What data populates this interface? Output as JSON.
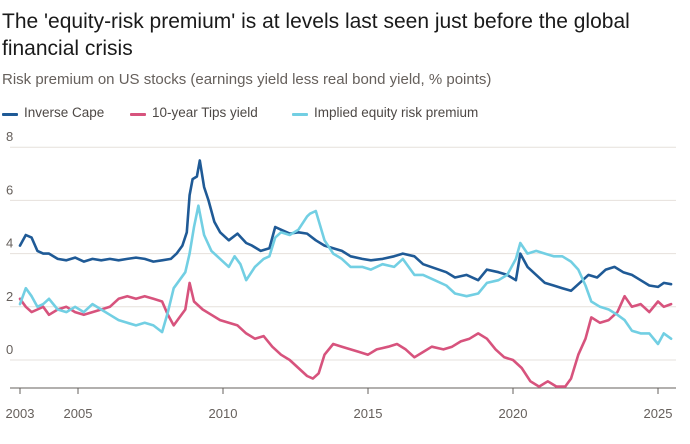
{
  "header": {
    "title": "The 'equity-risk premium' is at levels last seen just before the global financial crisis",
    "subtitle": "Risk premium on US stocks (earnings yield less real bond yield, % points)"
  },
  "chart_data": {
    "type": "line",
    "title": "The 'equity-risk premium' is at levels last seen just before the global financial crisis",
    "subtitle": "Risk premium on US stocks (earnings yield less real bond yield, % points)",
    "xlabel": "",
    "ylabel": "",
    "xlim": [
      2003,
      2025.5
    ],
    "ylim": [
      -1.1,
      8
    ],
    "x_ticks": [
      2003,
      2005,
      2010,
      2015,
      2020,
      2025
    ],
    "y_ticks": [
      0,
      2,
      4,
      6,
      8
    ],
    "grid": true,
    "legend_position": "top-left",
    "series": [
      {
        "name": "Inverse Cape",
        "color": "#1f5a96",
        "points": [
          [
            2003.0,
            4.3
          ],
          [
            2003.2,
            4.7
          ],
          [
            2003.4,
            4.6
          ],
          [
            2003.6,
            4.1
          ],
          [
            2003.8,
            4.0
          ],
          [
            2004.0,
            4.0
          ],
          [
            2004.3,
            3.8
          ],
          [
            2004.6,
            3.75
          ],
          [
            2004.9,
            3.85
          ],
          [
            2005.2,
            3.7
          ],
          [
            2005.5,
            3.8
          ],
          [
            2005.8,
            3.75
          ],
          [
            2006.1,
            3.8
          ],
          [
            2006.4,
            3.75
          ],
          [
            2006.7,
            3.8
          ],
          [
            2007.0,
            3.85
          ],
          [
            2007.3,
            3.8
          ],
          [
            2007.6,
            3.7
          ],
          [
            2007.9,
            3.75
          ],
          [
            2008.2,
            3.8
          ],
          [
            2008.4,
            4.0
          ],
          [
            2008.6,
            4.3
          ],
          [
            2008.75,
            4.8
          ],
          [
            2008.85,
            6.2
          ],
          [
            2008.95,
            6.8
          ],
          [
            2009.1,
            6.9
          ],
          [
            2009.2,
            7.5
          ],
          [
            2009.35,
            6.5
          ],
          [
            2009.5,
            6.0
          ],
          [
            2009.7,
            5.2
          ],
          [
            2009.9,
            4.8
          ],
          [
            2010.2,
            4.5
          ],
          [
            2010.5,
            4.75
          ],
          [
            2010.8,
            4.4
          ],
          [
            2011.0,
            4.3
          ],
          [
            2011.3,
            4.1
          ],
          [
            2011.6,
            4.2
          ],
          [
            2011.8,
            5.0
          ],
          [
            2012.0,
            4.9
          ],
          [
            2012.3,
            4.75
          ],
          [
            2012.6,
            4.8
          ],
          [
            2012.9,
            4.75
          ],
          [
            2013.2,
            4.5
          ],
          [
            2013.5,
            4.3
          ],
          [
            2013.8,
            4.2
          ],
          [
            2014.1,
            4.1
          ],
          [
            2014.4,
            3.9
          ],
          [
            2014.8,
            3.8
          ],
          [
            2015.1,
            3.75
          ],
          [
            2015.5,
            3.8
          ],
          [
            2015.9,
            3.9
          ],
          [
            2016.2,
            4.0
          ],
          [
            2016.6,
            3.9
          ],
          [
            2016.9,
            3.6
          ],
          [
            2017.3,
            3.45
          ],
          [
            2017.7,
            3.3
          ],
          [
            2018.0,
            3.1
          ],
          [
            2018.4,
            3.2
          ],
          [
            2018.8,
            3.0
          ],
          [
            2019.1,
            3.4
          ],
          [
            2019.5,
            3.3
          ],
          [
            2019.8,
            3.2
          ],
          [
            2020.1,
            3.0
          ],
          [
            2020.25,
            4.0
          ],
          [
            2020.5,
            3.5
          ],
          [
            2020.8,
            3.2
          ],
          [
            2021.1,
            2.9
          ],
          [
            2021.4,
            2.8
          ],
          [
            2021.7,
            2.7
          ],
          [
            2022.0,
            2.6
          ],
          [
            2022.3,
            2.9
          ],
          [
            2022.6,
            3.2
          ],
          [
            2022.9,
            3.1
          ],
          [
            2023.2,
            3.4
          ],
          [
            2023.5,
            3.5
          ],
          [
            2023.8,
            3.3
          ],
          [
            2024.1,
            3.2
          ],
          [
            2024.4,
            3.0
          ],
          [
            2024.7,
            2.8
          ],
          [
            2025.0,
            2.75
          ],
          [
            2025.2,
            2.9
          ],
          [
            2025.45,
            2.85
          ]
        ]
      },
      {
        "name": "10-year Tips yield",
        "color": "#d7537d",
        "points": [
          [
            2003.0,
            2.3
          ],
          [
            2003.2,
            2.0
          ],
          [
            2003.4,
            1.8
          ],
          [
            2003.6,
            1.9
          ],
          [
            2003.8,
            2.0
          ],
          [
            2004.0,
            1.7
          ],
          [
            2004.3,
            1.9
          ],
          [
            2004.6,
            2.0
          ],
          [
            2004.9,
            1.8
          ],
          [
            2005.2,
            1.7
          ],
          [
            2005.5,
            1.8
          ],
          [
            2005.8,
            1.9
          ],
          [
            2006.1,
            2.0
          ],
          [
            2006.4,
            2.3
          ],
          [
            2006.7,
            2.4
          ],
          [
            2007.0,
            2.3
          ],
          [
            2007.3,
            2.4
          ],
          [
            2007.6,
            2.3
          ],
          [
            2007.9,
            2.2
          ],
          [
            2008.1,
            1.7
          ],
          [
            2008.3,
            1.3
          ],
          [
            2008.5,
            1.6
          ],
          [
            2008.7,
            1.9
          ],
          [
            2008.85,
            2.9
          ],
          [
            2009.0,
            2.2
          ],
          [
            2009.3,
            1.9
          ],
          [
            2009.6,
            1.7
          ],
          [
            2009.9,
            1.5
          ],
          [
            2010.2,
            1.4
          ],
          [
            2010.5,
            1.3
          ],
          [
            2010.8,
            1.0
          ],
          [
            2011.1,
            0.8
          ],
          [
            2011.4,
            0.9
          ],
          [
            2011.7,
            0.5
          ],
          [
            2012.0,
            0.2
          ],
          [
            2012.3,
            0.0
          ],
          [
            2012.6,
            -0.3
          ],
          [
            2012.9,
            -0.6
          ],
          [
            2013.1,
            -0.7
          ],
          [
            2013.3,
            -0.5
          ],
          [
            2013.5,
            0.2
          ],
          [
            2013.8,
            0.6
          ],
          [
            2014.1,
            0.5
          ],
          [
            2014.4,
            0.4
          ],
          [
            2014.7,
            0.3
          ],
          [
            2015.0,
            0.2
          ],
          [
            2015.3,
            0.4
          ],
          [
            2015.7,
            0.5
          ],
          [
            2016.0,
            0.6
          ],
          [
            2016.3,
            0.4
          ],
          [
            2016.6,
            0.1
          ],
          [
            2016.9,
            0.3
          ],
          [
            2017.2,
            0.5
          ],
          [
            2017.6,
            0.4
          ],
          [
            2017.9,
            0.5
          ],
          [
            2018.2,
            0.7
          ],
          [
            2018.5,
            0.8
          ],
          [
            2018.8,
            1.0
          ],
          [
            2019.1,
            0.8
          ],
          [
            2019.4,
            0.4
          ],
          [
            2019.7,
            0.1
          ],
          [
            2020.0,
            0.0
          ],
          [
            2020.3,
            -0.3
          ],
          [
            2020.6,
            -0.8
          ],
          [
            2020.9,
            -1.0
          ],
          [
            2021.2,
            -0.8
          ],
          [
            2021.5,
            -1.0
          ],
          [
            2021.8,
            -1.0
          ],
          [
            2022.0,
            -0.7
          ],
          [
            2022.25,
            0.2
          ],
          [
            2022.5,
            0.8
          ],
          [
            2022.7,
            1.6
          ],
          [
            2023.0,
            1.4
          ],
          [
            2023.3,
            1.5
          ],
          [
            2023.6,
            1.8
          ],
          [
            2023.85,
            2.4
          ],
          [
            2024.1,
            2.0
          ],
          [
            2024.4,
            2.1
          ],
          [
            2024.7,
            1.8
          ],
          [
            2025.0,
            2.2
          ],
          [
            2025.2,
            2.0
          ],
          [
            2025.45,
            2.1
          ]
        ]
      },
      {
        "name": "Implied equity risk premium",
        "color": "#72cfe3",
        "points": [
          [
            2003.0,
            2.1
          ],
          [
            2003.2,
            2.7
          ],
          [
            2003.4,
            2.4
          ],
          [
            2003.6,
            2.0
          ],
          [
            2003.8,
            2.1
          ],
          [
            2004.0,
            2.3
          ],
          [
            2004.3,
            1.9
          ],
          [
            2004.6,
            1.8
          ],
          [
            2004.9,
            2.0
          ],
          [
            2005.2,
            1.8
          ],
          [
            2005.5,
            2.1
          ],
          [
            2005.8,
            1.9
          ],
          [
            2006.1,
            1.7
          ],
          [
            2006.4,
            1.5
          ],
          [
            2006.7,
            1.4
          ],
          [
            2007.0,
            1.3
          ],
          [
            2007.3,
            1.4
          ],
          [
            2007.6,
            1.3
          ],
          [
            2007.9,
            1.05
          ],
          [
            2008.1,
            1.8
          ],
          [
            2008.3,
            2.7
          ],
          [
            2008.5,
            3.0
          ],
          [
            2008.7,
            3.3
          ],
          [
            2008.85,
            4.0
          ],
          [
            2009.0,
            5.0
          ],
          [
            2009.15,
            5.8
          ],
          [
            2009.35,
            4.7
          ],
          [
            2009.6,
            4.1
          ],
          [
            2009.9,
            3.8
          ],
          [
            2010.2,
            3.5
          ],
          [
            2010.4,
            3.9
          ],
          [
            2010.6,
            3.6
          ],
          [
            2010.8,
            3.0
          ],
          [
            2011.1,
            3.5
          ],
          [
            2011.4,
            3.8
          ],
          [
            2011.6,
            3.9
          ],
          [
            2011.8,
            4.6
          ],
          [
            2012.0,
            4.8
          ],
          [
            2012.3,
            4.7
          ],
          [
            2012.6,
            4.9
          ],
          [
            2012.9,
            5.4
          ],
          [
            2013.0,
            5.5
          ],
          [
            2013.2,
            5.6
          ],
          [
            2013.5,
            4.5
          ],
          [
            2013.8,
            4.0
          ],
          [
            2014.1,
            3.8
          ],
          [
            2014.4,
            3.5
          ],
          [
            2014.8,
            3.5
          ],
          [
            2015.1,
            3.4
          ],
          [
            2015.5,
            3.6
          ],
          [
            2015.9,
            3.5
          ],
          [
            2016.2,
            3.8
          ],
          [
            2016.6,
            3.2
          ],
          [
            2016.9,
            3.2
          ],
          [
            2017.3,
            3.0
          ],
          [
            2017.7,
            2.8
          ],
          [
            2018.0,
            2.5
          ],
          [
            2018.4,
            2.4
          ],
          [
            2018.8,
            2.5
          ],
          [
            2019.1,
            2.9
          ],
          [
            2019.5,
            3.0
          ],
          [
            2019.8,
            3.2
          ],
          [
            2020.1,
            3.8
          ],
          [
            2020.25,
            4.4
          ],
          [
            2020.5,
            4.0
          ],
          [
            2020.8,
            4.1
          ],
          [
            2021.1,
            4.0
          ],
          [
            2021.4,
            3.9
          ],
          [
            2021.7,
            3.9
          ],
          [
            2022.0,
            3.7
          ],
          [
            2022.25,
            3.4
          ],
          [
            2022.5,
            2.8
          ],
          [
            2022.7,
            2.2
          ],
          [
            2023.0,
            2.0
          ],
          [
            2023.3,
            1.9
          ],
          [
            2023.6,
            1.7
          ],
          [
            2023.85,
            1.5
          ],
          [
            2024.1,
            1.1
          ],
          [
            2024.4,
            1.0
          ],
          [
            2024.7,
            1.0
          ],
          [
            2025.0,
            0.6
          ],
          [
            2025.2,
            1.0
          ],
          [
            2025.45,
            0.8
          ]
        ]
      }
    ]
  }
}
